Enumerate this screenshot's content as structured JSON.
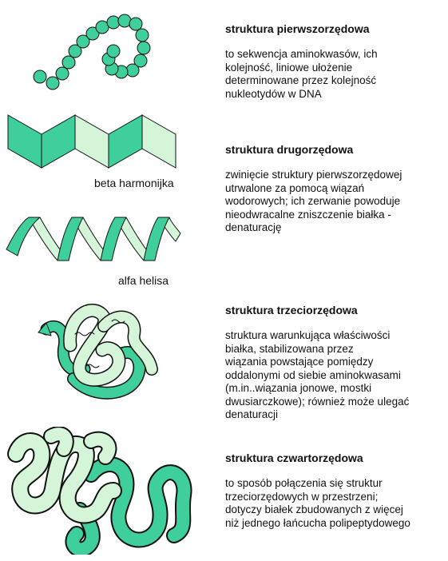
{
  "colors": {
    "dark_green": "#3ecf9a",
    "light_green": "#d4f5d8",
    "outline": "#111111"
  },
  "illustrations": {
    "primary": "amino-acid-bead-chain",
    "secondary_beta": "beta-pleated-sheet",
    "secondary_alpha": "alpha-helix-ribbon",
    "tertiary": "folded-ribbon-protein",
    "quaternary": "multi-chain-protein-complex"
  },
  "captions": {
    "beta": "beta harmonijka",
    "alpha": "alfa helisa"
  },
  "sections": {
    "primary": {
      "title": "struktura pierwszorzędowa",
      "lines": [
        "to sekwencja aminokwasów, ich",
        "kolejność, liniowe ułożenie",
        "determinowane przez kolejność",
        "nukleotydów w DNA"
      ]
    },
    "secondary": {
      "title": "struktura drugorzędowa",
      "lines": [
        "zwinięcie struktury pierwszorzędowej",
        "utrwalone za pomocą wiązań",
        "wodorowych; ich zerwanie powoduje",
        "nieodwracalne zniszczenie białka -",
        "denaturację"
      ]
    },
    "tertiary": {
      "title": "struktura trzeciorzędowa",
      "lines": [
        "struktura warunkująca właściwości",
        "białka, stabilizowana przez",
        "wiązania powstające pomiędzy",
        "oddalonymi od siebie aminokwasami",
        "(m.in..wiązania jonowe, mostki",
        "dwusiarczkowe); również może ulegać",
        "denaturacji"
      ]
    },
    "quaternary": {
      "title": "struktura czwartorzędowa",
      "lines": [
        "to sposób połączenia się struktur",
        "trzeciorzędowych w przestrzeni;",
        "dotyczy białek zbudowanych z więcej",
        "niż jednego łańcucha polipeptydowego"
      ]
    }
  }
}
